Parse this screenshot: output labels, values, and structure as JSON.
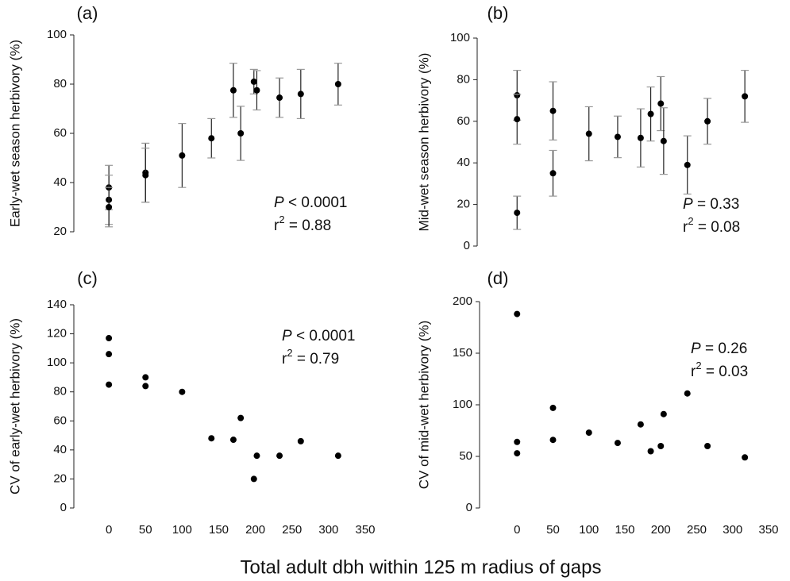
{
  "chart_data": [
    {
      "type": "scatter",
      "label": "(a)",
      "ylabel": "Early-wet season herbivory (%)",
      "annotations": [
        [
          "P",
          " < 0.0001"
        ],
        [
          "r",
          "2",
          " = 0.88"
        ]
      ],
      "x": [
        0,
        0,
        0,
        50,
        50,
        100,
        140,
        170,
        180,
        198,
        202,
        233,
        262,
        313
      ],
      "values": [
        38,
        33,
        30,
        44,
        43,
        51,
        58,
        77.5,
        60,
        81,
        77.5,
        74.5,
        76,
        80
      ],
      "errors": [
        9,
        10,
        8,
        12,
        11,
        13,
        8,
        11,
        11,
        5,
        8,
        8,
        10,
        8.5
      ],
      "xlim": [
        -50,
        350
      ],
      "ylim": [
        20,
        100
      ],
      "yticks": [
        20,
        40,
        60,
        80,
        100
      ]
    },
    {
      "type": "scatter",
      "label": "(b)",
      "ylabel": "Mid-wet season herbivory (%)",
      "annotations": [
        [
          "P",
          " = 0.33"
        ],
        [
          "r",
          "2",
          " = 0.08"
        ]
      ],
      "x": [
        0,
        0,
        0,
        50,
        50,
        100,
        140,
        172,
        186,
        200,
        204,
        237,
        265,
        317
      ],
      "values": [
        72.5,
        61,
        16,
        65,
        35,
        54,
        52.5,
        52,
        63.5,
        68.5,
        50.5,
        39,
        60,
        72
      ],
      "errors": [
        12,
        12,
        8,
        14,
        11,
        13,
        10,
        14,
        13,
        13,
        16,
        14,
        11,
        12.5
      ],
      "xlim": [
        -50,
        350
      ],
      "ylim": [
        0,
        100
      ],
      "yticks": [
        0,
        20,
        40,
        60,
        80,
        100
      ]
    },
    {
      "type": "scatter",
      "label": "(c)",
      "ylabel": "CV of early-wet herbivory (%)",
      "annotations": [
        [
          "P",
          " < 0.0001"
        ],
        [
          "r",
          "2",
          " = 0.79"
        ]
      ],
      "x": [
        0,
        0,
        0,
        50,
        50,
        100,
        140,
        170,
        180,
        198,
        202,
        233,
        262,
        313
      ],
      "values": [
        117,
        106,
        85,
        90,
        84,
        80,
        48,
        47,
        62,
        20,
        36,
        36,
        46,
        36
      ],
      "xlim": [
        -50,
        350
      ],
      "xticks": [
        0,
        50,
        100,
        150,
        200,
        250,
        300,
        350
      ],
      "ylim": [
        0,
        140
      ],
      "yticks": [
        0,
        20,
        40,
        60,
        80,
        100,
        120,
        140
      ]
    },
    {
      "type": "scatter",
      "label": "(d)",
      "ylabel": "CV of mid-wet herbivory (%)",
      "annotations": [
        [
          "P",
          " = 0.26"
        ],
        [
          "r",
          "2",
          " = 0.03"
        ]
      ],
      "x": [
        0,
        0,
        0,
        50,
        50,
        100,
        140,
        172,
        186,
        200,
        204,
        237,
        265,
        317
      ],
      "values": [
        188,
        64,
        53,
        97,
        66,
        73,
        63,
        81,
        55,
        60,
        91,
        111,
        60,
        49
      ],
      "xlim": [
        -50,
        350
      ],
      "xticks": [
        0,
        50,
        100,
        150,
        200,
        250,
        300,
        350
      ],
      "ylim": [
        0,
        200
      ],
      "yticks": [
        0,
        50,
        100,
        150,
        200
      ]
    }
  ],
  "xlabel": "Total adult dbh within 125 m radius of gaps"
}
